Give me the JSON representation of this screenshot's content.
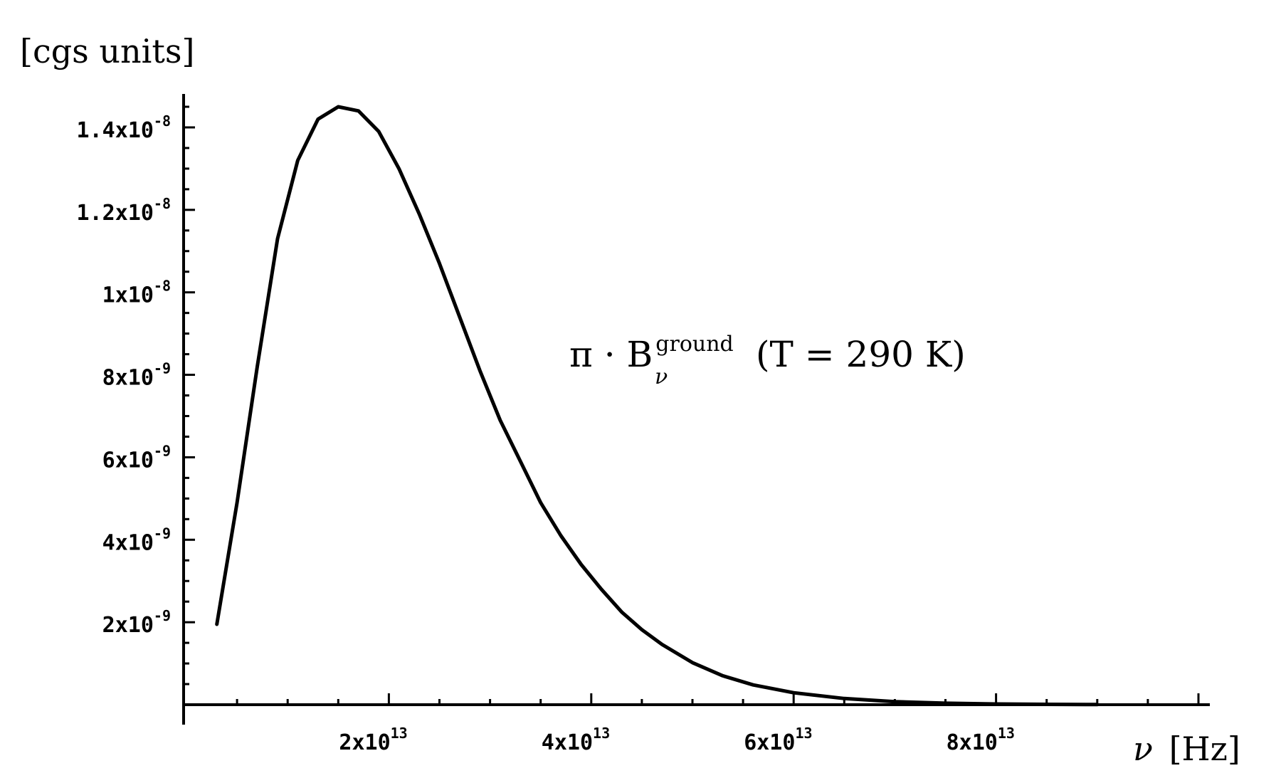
{
  "chart_data": {
    "type": "line",
    "ylabel": "[cgs units]",
    "xlabel": {
      "symbol": "ν",
      "unit": "[Hz]"
    },
    "annotation": {
      "prefix": "π · B",
      "superscript": "ground",
      "subscript": "ν",
      "suffix": "(T = 290 K)"
    },
    "xlim": [
      0,
      100000000000000.0
    ],
    "ylim": [
      0,
      1.45e-08
    ],
    "x_ticks": [
      {
        "value": 20000000000000.0,
        "mantissa": "2x10",
        "exponent": "13"
      },
      {
        "value": 40000000000000.0,
        "mantissa": "4x10",
        "exponent": "13"
      },
      {
        "value": 60000000000000.0,
        "mantissa": "6x10",
        "exponent": "13"
      },
      {
        "value": 80000000000000.0,
        "mantissa": "8x10",
        "exponent": "13"
      }
    ],
    "x_minor_step": 5000000000000.0,
    "y_ticks": [
      {
        "value": 2e-09,
        "mantissa": "2x10",
        "exponent": "-9"
      },
      {
        "value": 4e-09,
        "mantissa": "4x10",
        "exponent": "-9"
      },
      {
        "value": 6e-09,
        "mantissa": "6x10",
        "exponent": "-9"
      },
      {
        "value": 8e-09,
        "mantissa": "8x10",
        "exponent": "-9"
      },
      {
        "value": 1e-08,
        "mantissa": "1x10",
        "exponent": "-8"
      },
      {
        "value": 1.2e-08,
        "mantissa": "1.2x10",
        "exponent": "-8"
      },
      {
        "value": 1.4e-08,
        "mantissa": "1.4x10",
        "exponent": "-8"
      }
    ],
    "y_minor_step": 5e-10,
    "grid": false,
    "series": [
      {
        "x": [
          3000000000000.0,
          5000000000000.0,
          7000000000000.0,
          9000000000000.0,
          11000000000000.0,
          13000000000000.0,
          15000000000000.0,
          17000000000000.0,
          19000000000000.0,
          21000000000000.0,
          23000000000000.0,
          25000000000000.0,
          27000000000000.0,
          29000000000000.0,
          31000000000000.0,
          33000000000000.0,
          35000000000000.0,
          37000000000000.0,
          39000000000000.0,
          41000000000000.0,
          43000000000000.0,
          45000000000000.0,
          47000000000000.0,
          50000000000000.0,
          53000000000000.0,
          56000000000000.0,
          60000000000000.0,
          65000000000000.0,
          70000000000000.0,
          75000000000000.0,
          80000000000000.0,
          85000000000000.0,
          90000000000000.0
        ],
        "y": [
          1.95e-09,
          4.9e-09,
          8.2e-09,
          1.13e-08,
          1.32e-08,
          1.42e-08,
          1.45e-08,
          1.44e-08,
          1.39e-08,
          1.3e-08,
          1.19e-08,
          1.07e-08,
          9.4e-09,
          8.1e-09,
          6.9e-09,
          5.9e-09,
          4.9e-09,
          4.1e-09,
          3.4e-09,
          2.8e-09,
          2.25e-09,
          1.82e-09,
          1.46e-09,
          1.02e-09,
          7e-10,
          4.8e-10,
          2.9e-10,
          1.5e-10,
          7.5e-11,
          3.7e-11,
          1.8e-11,
          8.5e-12,
          4e-12
        ]
      }
    ]
  }
}
